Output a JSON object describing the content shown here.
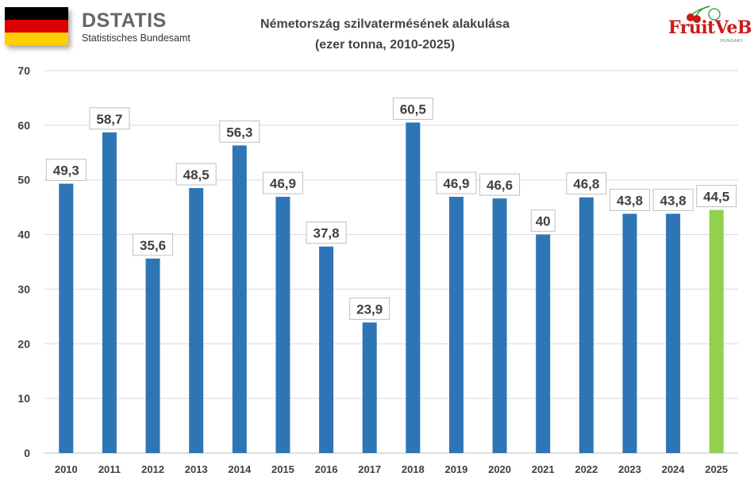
{
  "logos": {
    "destatis_word": "DSTATIS",
    "destatis_sub": "Statistisches Bundesamt",
    "fruitveb_word": "FruitVeB",
    "fruitveb_sub": "HUNGARY",
    "flag_icon": "germany-flag-icon"
  },
  "colors": {
    "bar": "#2e75b6",
    "bar_highlight": "#92d050",
    "grid": "#d9d9d9",
    "label_border": "#bfbfbf",
    "text": "#404040",
    "flag": [
      "#000000",
      "#dd0000",
      "#ffce00"
    ]
  },
  "chart_data": {
    "type": "bar",
    "title": "Németország szilvatermésének alakulása",
    "subtitle": "(ezer tonna, 2010-2025)",
    "categories": [
      "2010",
      "2011",
      "2012",
      "2013",
      "2014",
      "2015",
      "2016",
      "2017",
      "2018",
      "2019",
      "2020",
      "2021",
      "2022",
      "2023",
      "2024",
      "2025"
    ],
    "values": [
      49.3,
      58.7,
      35.6,
      48.5,
      56.3,
      46.9,
      37.8,
      23.9,
      60.5,
      46.9,
      46.6,
      40,
      46.8,
      43.8,
      43.8,
      44.5
    ],
    "data_labels": [
      "49,3",
      "58,7",
      "35,6",
      "48,5",
      "56,3",
      "46,9",
      "37,8",
      "23,9",
      "60,5",
      "46,9",
      "46,6",
      "40",
      "46,8",
      "43,8",
      "43,8",
      "44,5"
    ],
    "highlight_category": "2025",
    "ylim": [
      0,
      70
    ],
    "yticks": [
      0,
      10,
      20,
      30,
      40,
      50,
      60,
      70
    ],
    "xlabel": "",
    "ylabel": "",
    "grid": true,
    "legend": "none"
  }
}
